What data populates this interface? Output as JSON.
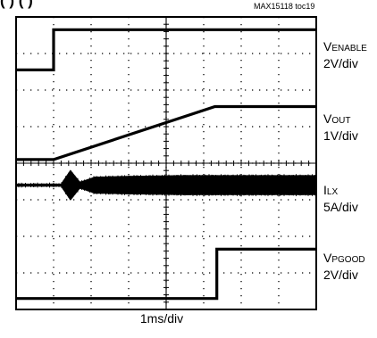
{
  "header": {
    "title_fragment": "(          ) (       )",
    "figure_id": "MAX15118 toc19"
  },
  "chart_data": {
    "type": "line",
    "title": "",
    "x_divisions": 8,
    "y_divisions": 8,
    "grid": true,
    "x_scale": "1ms/div",
    "x_unit": "ms",
    "series": [
      {
        "name": "VENABLE",
        "label_main": "V",
        "label_sub": "ENABLE",
        "scale": "2V/div",
        "kind": "line",
        "x": [
          0,
          1.0,
          1.0,
          8
        ],
        "y": [
          6.55,
          6.55,
          7.65,
          7.65
        ]
      },
      {
        "name": "VOUT",
        "label_main": "V",
        "label_sub": "OUT",
        "scale": "1V/div",
        "kind": "line",
        "x": [
          0,
          1.0,
          5.3,
          8
        ],
        "y": [
          4.1,
          4.1,
          5.55,
          5.55
        ]
      },
      {
        "name": "ILX",
        "label_main": "I",
        "label_sub": "LX",
        "scale": "5A/div",
        "kind": "envelope",
        "baseline": 3.4,
        "x": [
          0,
          1.2,
          1.45,
          1.7,
          2.1,
          3.0,
          4.5,
          6.0,
          8.0
        ],
        "amplitude": [
          0.03,
          0.03,
          0.4,
          0.08,
          0.22,
          0.24,
          0.26,
          0.26,
          0.26
        ]
      },
      {
        "name": "VPGOOD",
        "label_main": "V",
        "label_sub": "PGOOD",
        "scale": "2V/div",
        "kind": "line",
        "x": [
          0,
          5.35,
          5.35,
          8
        ],
        "y": [
          0.3,
          0.3,
          1.65,
          1.65
        ]
      }
    ]
  }
}
